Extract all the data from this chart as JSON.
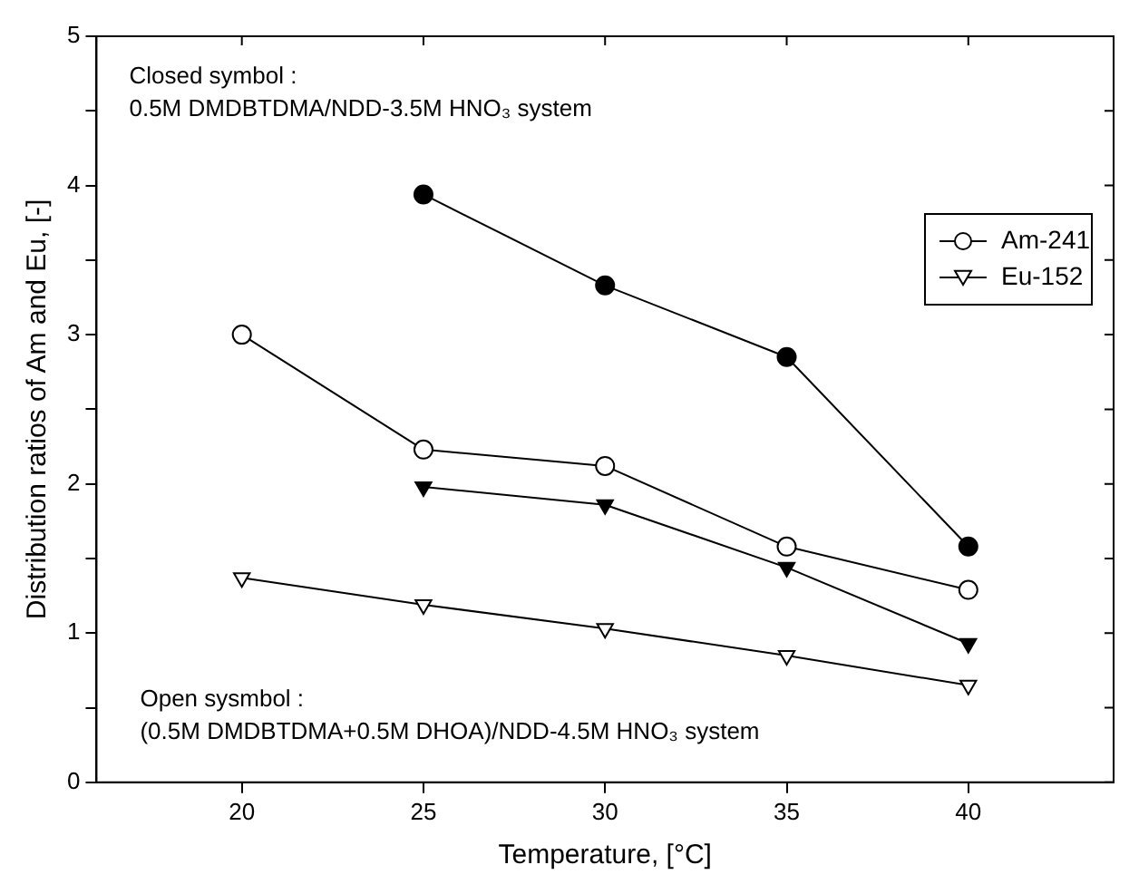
{
  "chart_data": {
    "type": "line",
    "xlabel": "Temperature, [°C]",
    "ylabel": "Distribution ratios of Am and Eu, [-]",
    "xlim": [
      16,
      44
    ],
    "xticks": [
      20,
      25,
      30,
      35,
      40
    ],
    "ylim": [
      0,
      5
    ],
    "yticks": [
      0,
      {
        "value": 0.5,
        "label": null
      },
      1,
      {
        "value": 1.5,
        "label": null
      },
      2,
      {
        "value": 2.5,
        "label": null
      },
      3,
      {
        "value": 3.5,
        "label": null
      },
      4,
      {
        "value": 4.5,
        "label": null
      },
      5
    ],
    "grid": false,
    "legend": "top right",
    "line_style": "solid",
    "annotations": [
      "Closed symbol :\n0.5M DMDBTDMA/NDD-3.5M HNO₃ system",
      "Open sysmbol :\n(0.5M DMDBTDMA+0.5M DHOA)/NDD-4.5M HNO₃ system"
    ],
    "series": [
      {
        "color": "#000000",
        "marker": "circle",
        "x": [
          25,
          30,
          35,
          40
        ],
        "values": [
          3.94,
          3.33,
          2.85,
          1.58
        ]
      },
      {
        "name": "Am-241",
        "color": "#000000",
        "marker": "circle",
        "x": [
          20,
          25,
          30,
          35,
          40
        ],
        "values": [
          3.0,
          2.23,
          2.12,
          1.58,
          1.29
        ]
      },
      {
        "color": "#000000",
        "marker": "triangle",
        "x": [
          25,
          30,
          35,
          40
        ],
        "values": [
          1.98,
          1.86,
          1.44,
          0.93
        ]
      },
      {
        "name": "Eu-152",
        "color": "#000000",
        "marker": "triangle",
        "x": [
          20,
          25,
          30,
          35,
          40
        ],
        "values": [
          1.37,
          1.19,
          1.03,
          0.85,
          0.65
        ]
      }
    ]
  }
}
